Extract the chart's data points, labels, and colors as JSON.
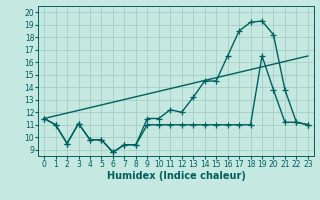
{
  "xlabel": "Humidex (Indice chaleur)",
  "background_color": "#c5e8e0",
  "grid_color": "#a0c8c0",
  "line_color": "#006060",
  "xlim": [
    -0.5,
    23.5
  ],
  "ylim": [
    8.5,
    20.5
  ],
  "xticks": [
    0,
    1,
    2,
    3,
    4,
    5,
    6,
    7,
    8,
    9,
    10,
    11,
    12,
    13,
    14,
    15,
    16,
    17,
    18,
    19,
    20,
    21,
    22,
    23
  ],
  "yticks": [
    9,
    10,
    11,
    12,
    13,
    14,
    15,
    16,
    17,
    18,
    19,
    20
  ],
  "line1_x": [
    0,
    1,
    2,
    3,
    4,
    5,
    6,
    7,
    8,
    9,
    10,
    11,
    12,
    13,
    14,
    15,
    16,
    17,
    18,
    19,
    20,
    21,
    22,
    23
  ],
  "line1_y": [
    11.5,
    11.0,
    9.5,
    11.1,
    9.8,
    9.8,
    8.8,
    9.4,
    9.4,
    11.5,
    11.5,
    12.2,
    12.0,
    13.2,
    14.5,
    14.5,
    16.5,
    18.5,
    19.2,
    19.3,
    18.2,
    13.8,
    11.2,
    11.0
  ],
  "line2_x": [
    0,
    1,
    2,
    3,
    4,
    5,
    6,
    7,
    8,
    9,
    10,
    11,
    12,
    13,
    14,
    15,
    16,
    17,
    18,
    19,
    20,
    21,
    22,
    23
  ],
  "line2_y": [
    11.5,
    11.0,
    9.5,
    11.1,
    9.8,
    9.8,
    8.8,
    9.4,
    9.4,
    11.0,
    11.0,
    11.0,
    11.0,
    11.0,
    11.0,
    11.0,
    11.0,
    11.0,
    11.0,
    16.5,
    13.8,
    11.2,
    11.2,
    11.0
  ],
  "line3_x": [
    0,
    23
  ],
  "line3_y": [
    11.5,
    16.5
  ],
  "fontsize_label": 7,
  "fontsize_tick": 5.5,
  "linewidth": 1.0,
  "markersize": 3.0,
  "marker": "+"
}
